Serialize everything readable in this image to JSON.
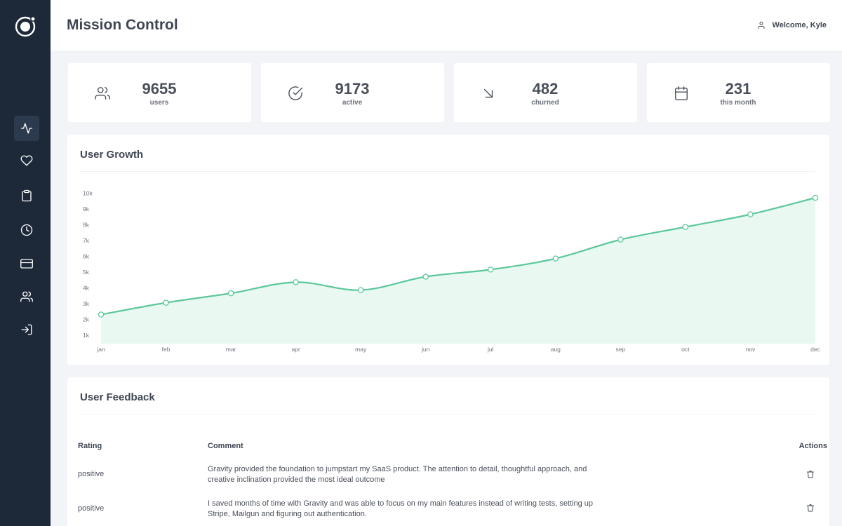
{
  "app": {
    "title": "Mission Control"
  },
  "header": {
    "welcome": "Welcome, Kyle",
    "user_icon": "user-icon"
  },
  "sidebar": {
    "items": [
      {
        "name": "activity",
        "icon": "activity-icon",
        "active": true
      },
      {
        "name": "favorites",
        "icon": "heart-icon",
        "active": false
      },
      {
        "name": "clipboard",
        "icon": "clipboard-icon",
        "active": false
      },
      {
        "name": "history",
        "icon": "clock-icon",
        "active": false
      },
      {
        "name": "billing",
        "icon": "credit-card-icon",
        "active": false
      },
      {
        "name": "users",
        "icon": "users-icon",
        "active": false
      },
      {
        "name": "logout",
        "icon": "log-in-icon",
        "active": false
      }
    ]
  },
  "stats": [
    {
      "value": "9655",
      "label": "users",
      "icon": "users-icon"
    },
    {
      "value": "9173",
      "label": "active",
      "icon": "check-circle-icon"
    },
    {
      "value": "482",
      "label": "churned",
      "icon": "arrow-down-right-icon"
    },
    {
      "value": "231",
      "label": "this month",
      "icon": "calendar-icon"
    }
  ],
  "growth": {
    "title": "User Growth",
    "chart_data": {
      "type": "area",
      "x": [
        "jan",
        "feb",
        "mar",
        "apr",
        "may",
        "jun",
        "jul",
        "aug",
        "sep",
        "oct",
        "nov",
        "dec"
      ],
      "series": [
        {
          "values": [
            2.3,
            3.05,
            3.65,
            4.35,
            3.85,
            4.7,
            5.15,
            5.85,
            7.05,
            7.85,
            8.65,
            9.7
          ]
        }
      ],
      "y_ticks": [
        "1k",
        "2k",
        "3k",
        "4k",
        "5k",
        "6k",
        "7k",
        "8k",
        "9k",
        "10k"
      ],
      "ylim": [
        0.5,
        10.5
      ],
      "grid": false,
      "color": "#5cc89a",
      "fill": "#e9f8f1"
    }
  },
  "feedback": {
    "title": "User Feedback",
    "columns": {
      "rating": "Rating",
      "comment": "Comment",
      "actions": "Actions"
    },
    "rows": [
      {
        "rating": "positive",
        "comment_lines": [
          "Gravity provided the foundation to jumpstart my SaaS product. The attention to detail, thoughtful approach, and",
          "creative inclination provided the most ideal outcome"
        ]
      },
      {
        "rating": "positive",
        "comment_lines": [
          "I saved months of time with Gravity and was able to focus on my main features instead of writing tests, setting up",
          "Stripe, Mailgun and figuring out authentication."
        ]
      }
    ]
  }
}
